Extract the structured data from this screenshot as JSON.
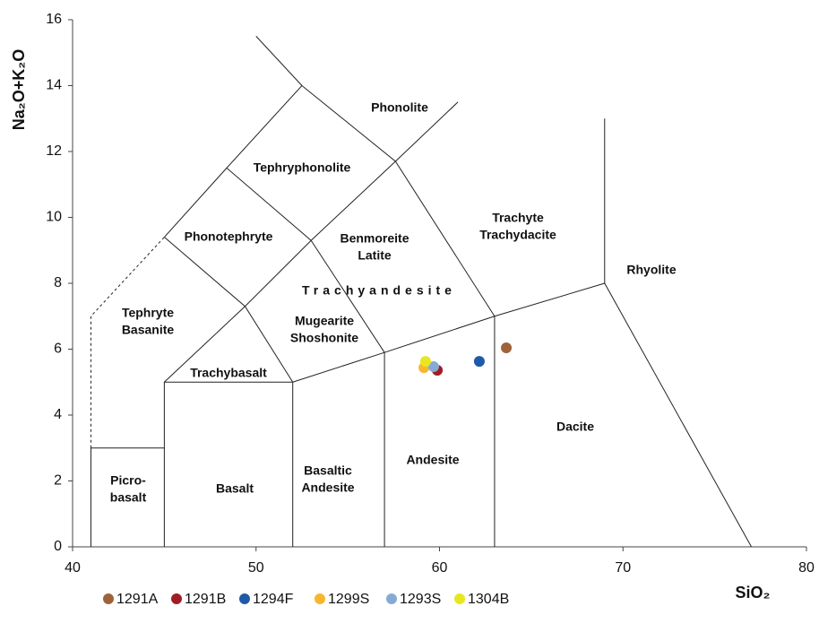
{
  "chart_data": {
    "type": "scatter",
    "xlabel": "SiO₂",
    "ylabel": "Na₂O+K₂O",
    "xlim": [
      40,
      80
    ],
    "ylim": [
      0,
      16
    ],
    "xticks": [
      40,
      50,
      60,
      70,
      80
    ],
    "yticks": [
      0,
      2,
      4,
      6,
      8,
      10,
      12,
      14,
      16
    ],
    "series": [
      {
        "name": "1291A",
        "color": "#a0623a",
        "x": [
          63.64
        ],
        "values": [
          6.04
        ]
      },
      {
        "name": "1291B",
        "color": "#a01d26",
        "x": [
          59.88
        ],
        "values": [
          5.36
        ]
      },
      {
        "name": "1294F",
        "color": "#1f5aa8",
        "x": [
          62.17
        ],
        "values": [
          5.63
        ]
      },
      {
        "name": "1299S",
        "color": "#f8b62d",
        "x": [
          59.15
        ],
        "values": [
          5.44
        ]
      },
      {
        "name": "1293S",
        "color": "#86aad4",
        "x": [
          59.68
        ],
        "values": [
          5.47
        ]
      },
      {
        "name": "1304B",
        "color": "#e8e622",
        "x": [
          59.24
        ],
        "values": [
          5.63
        ]
      }
    ],
    "boundaries": [
      {
        "x": [
          41,
          41,
          45
        ],
        "y": [
          0,
          3,
          3
        ]
      },
      {
        "x": [
          41,
          41,
          45
        ],
        "y": [
          3,
          7,
          9.4
        ],
        "dashed": true
      },
      {
        "x": [
          45,
          48.4,
          52.5,
          57.6,
          63,
          63
        ],
        "y": [
          9.4,
          11.5,
          14,
          11.7,
          7,
          0
        ]
      },
      {
        "x": [
          50,
          52.5
        ],
        "y": [
          15.5,
          14
        ]
      },
      {
        "x": [
          57.6,
          61
        ],
        "y": [
          11.7,
          13.5
        ]
      },
      {
        "x": [
          45,
          45,
          52,
          52
        ],
        "y": [
          0,
          5,
          5,
          0
        ]
      },
      {
        "x": [
          45,
          49.4,
          53,
          57.6
        ],
        "y": [
          5,
          7.3,
          9.3,
          11.7
        ]
      },
      {
        "x": [
          48.4,
          53
        ],
        "y": [
          11.5,
          9.3
        ]
      },
      {
        "x": [
          45,
          49.4,
          52
        ],
        "y": [
          9.4,
          7.3,
          5
        ]
      },
      {
        "x": [
          53,
          57,
          57
        ],
        "y": [
          9.3,
          5.9,
          0
        ]
      },
      {
        "x": [
          52,
          57,
          63,
          69,
          77
        ],
        "y": [
          5,
          5.9,
          7,
          8,
          0
        ]
      },
      {
        "x": [
          69,
          69
        ],
        "y": [
          8,
          13
        ]
      }
    ],
    "fields": [
      [
        "Phonolite"
      ],
      [
        "Tephryphonolite"
      ],
      [
        "Phonotephryte"
      ],
      [
        "Benmoreite",
        "Latite"
      ],
      [
        "Trachyte",
        "Trachydacite"
      ],
      [
        "Rhyolite"
      ],
      [
        "Trachyandesite"
      ],
      [
        "Tephryte",
        "Basanite"
      ],
      [
        "Mugearite",
        "Shoshonite"
      ],
      [
        "Trachybasalt"
      ],
      [
        "Picro-",
        "basalt"
      ],
      [
        "Basalt"
      ],
      [
        "Basaltic",
        "Andesite"
      ],
      [
        "Andesite"
      ],
      [
        "Dacite"
      ]
    ]
  }
}
